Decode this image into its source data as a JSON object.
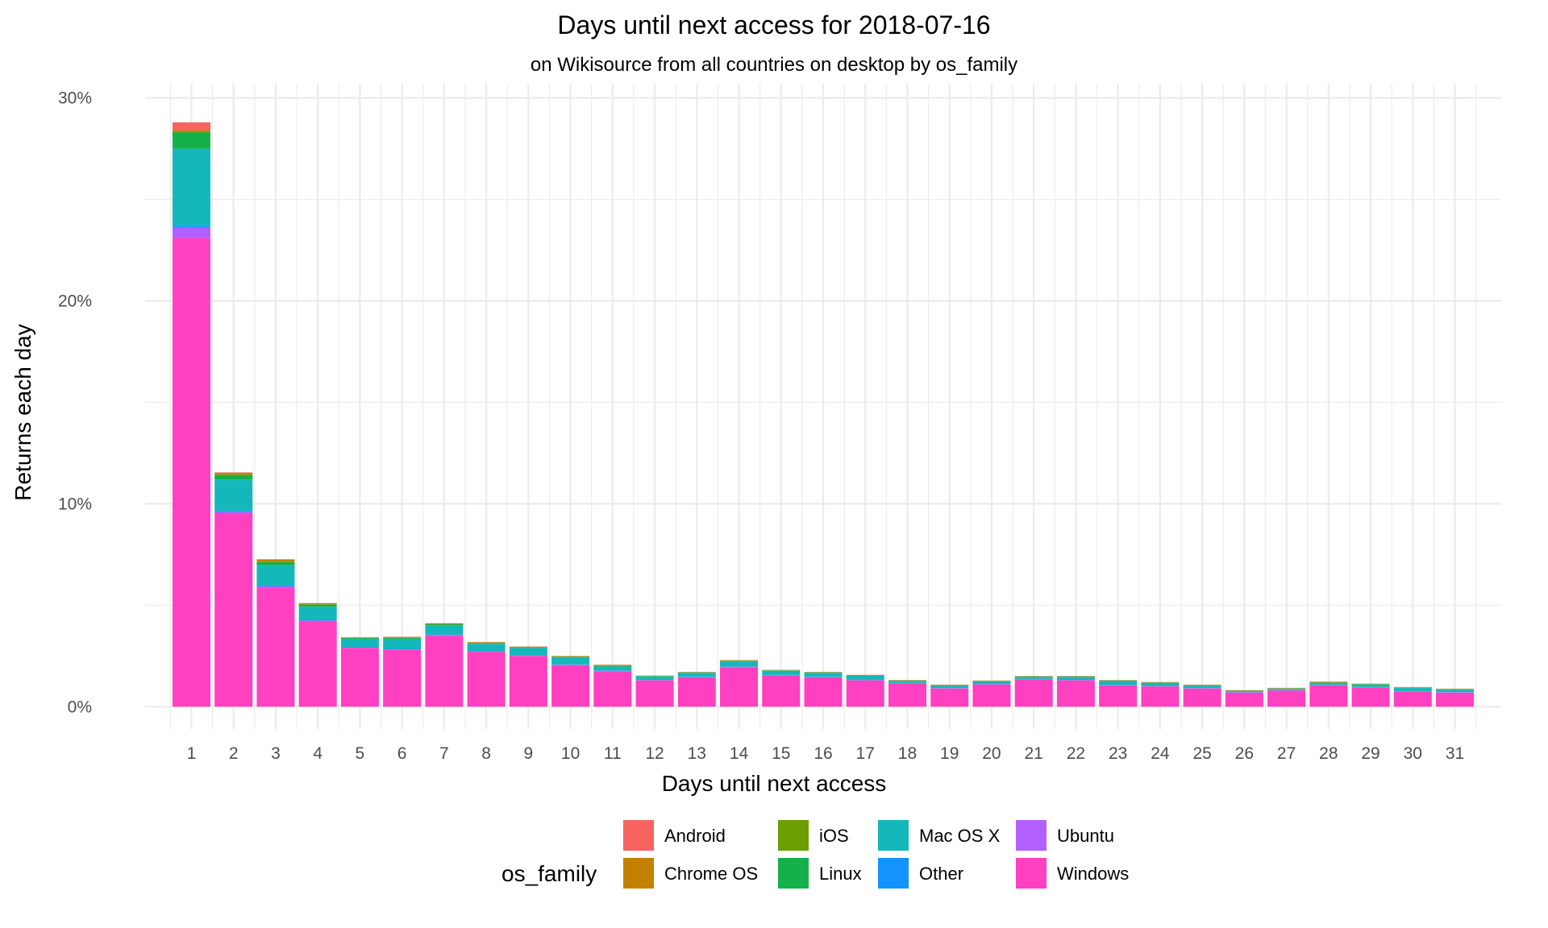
{
  "chart_data": {
    "type": "bar",
    "stacked": true,
    "title": "Days until next access for 2018-07-16",
    "subtitle": "on Wikisource from all countries on desktop by os_family",
    "xlabel": "Days until next access",
    "ylabel": "Returns each day",
    "categories": [
      "1",
      "2",
      "3",
      "4",
      "5",
      "6",
      "7",
      "8",
      "9",
      "10",
      "11",
      "12",
      "13",
      "14",
      "15",
      "16",
      "17",
      "18",
      "19",
      "20",
      "21",
      "22",
      "23",
      "24",
      "25",
      "26",
      "27",
      "28",
      "29",
      "30",
      "31"
    ],
    "y_ticks": [
      0,
      10,
      20,
      30
    ],
    "y_tick_labels": [
      "0%",
      "10%",
      "20%",
      "30%"
    ],
    "ylim": [
      -1.1,
      30.7
    ],
    "grid": true,
    "legend": {
      "title": "os_family",
      "placement": "bottom"
    },
    "series": [
      {
        "name": "Windows",
        "color": "#FF40C0",
        "values": [
          23.1,
          9.5,
          5.85,
          4.2,
          2.9,
          2.8,
          3.5,
          2.7,
          2.5,
          2.05,
          1.75,
          1.3,
          1.45,
          1.95,
          1.55,
          1.45,
          1.3,
          1.15,
          0.9,
          1.1,
          1.35,
          1.3,
          1.05,
          1.0,
          0.9,
          0.7,
          0.8,
          1.05,
          0.95,
          0.75,
          0.7
        ]
      },
      {
        "name": "Ubuntu",
        "color": "#B35FFF",
        "values": [
          0.5,
          0.1,
          0.08,
          0.05,
          0.03,
          0.03,
          0.04,
          0.03,
          0.03,
          0.02,
          0.02,
          0.01,
          0.01,
          0.02,
          0.01,
          0.01,
          0.01,
          0.01,
          0.01,
          0.01,
          0.01,
          0.01,
          0.01,
          0.01,
          0.01,
          0.01,
          0.01,
          0.01,
          0.01,
          0.01,
          0.01
        ]
      },
      {
        "name": "Other",
        "color": "#1493FF",
        "values": [
          0.1,
          0.05,
          0.04,
          0.03,
          0.02,
          0.02,
          0.02,
          0.02,
          0.02,
          0.01,
          0.01,
          0.01,
          0.01,
          0.01,
          0.01,
          0.01,
          0.01,
          0.01,
          0.01,
          0.01,
          0.01,
          0.01,
          0.01,
          0.01,
          0.01,
          0.01,
          0.01,
          0.01,
          0.01,
          0.01,
          0.01
        ]
      },
      {
        "name": "Mac OS X",
        "color": "#14B8BA",
        "values": [
          3.8,
          1.55,
          1.0,
          0.65,
          0.4,
          0.5,
          0.45,
          0.35,
          0.35,
          0.35,
          0.2,
          0.17,
          0.2,
          0.25,
          0.2,
          0.2,
          0.2,
          0.1,
          0.12,
          0.12,
          0.1,
          0.15,
          0.2,
          0.15,
          0.12,
          0.05,
          0.06,
          0.1,
          0.12,
          0.15,
          0.12
        ]
      },
      {
        "name": "Linux",
        "color": "#16B04A",
        "values": [
          0.8,
          0.22,
          0.15,
          0.1,
          0.04,
          0.04,
          0.05,
          0.04,
          0.03,
          0.03,
          0.03,
          0.02,
          0.02,
          0.03,
          0.02,
          0.02,
          0.02,
          0.02,
          0.02,
          0.02,
          0.02,
          0.02,
          0.02,
          0.02,
          0.02,
          0.02,
          0.02,
          0.02,
          0.02,
          0.02,
          0.02
        ]
      },
      {
        "name": "iOS",
        "color": "#6B9E00",
        "values": [
          0.05,
          0.03,
          0.03,
          0.02,
          0.01,
          0.01,
          0.02,
          0.01,
          0.01,
          0.01,
          0.01,
          0.01,
          0.01,
          0.01,
          0.01,
          0.01,
          0.01,
          0.01,
          0.01,
          0.01,
          0.01,
          0.01,
          0.01,
          0.01,
          0.01,
          0.01,
          0.01,
          0.01,
          0.01,
          0.01,
          0.01
        ]
      },
      {
        "name": "Chrome OS",
        "color": "#C28100",
        "values": [
          0.05,
          0.08,
          0.1,
          0.05,
          0.02,
          0.04,
          0.03,
          0.03,
          0.02,
          0.02,
          0.04,
          0.01,
          0.01,
          0.02,
          0.01,
          0.01,
          0.01,
          0.01,
          0.01,
          0.01,
          0.01,
          0.01,
          0.01,
          0.01,
          0.01,
          0.01,
          0.01,
          0.03,
          0.01,
          0.01,
          0.01
        ]
      },
      {
        "name": "Android",
        "color": "#F8635F",
        "values": [
          0.4,
          0.02,
          0.02,
          0.01,
          0.01,
          0.01,
          0.01,
          0.01,
          0.01,
          0.01,
          0.01,
          0.01,
          0.01,
          0.01,
          0.01,
          0.01,
          0.01,
          0.01,
          0.01,
          0.01,
          0.01,
          0.01,
          0.01,
          0.01,
          0.01,
          0.01,
          0.01,
          0.01,
          0.01,
          0.01,
          0.01
        ]
      }
    ],
    "legend_order": [
      "Android",
      "Chrome OS",
      "iOS",
      "Linux",
      "Mac OS X",
      "Other",
      "Ubuntu",
      "Windows"
    ]
  }
}
